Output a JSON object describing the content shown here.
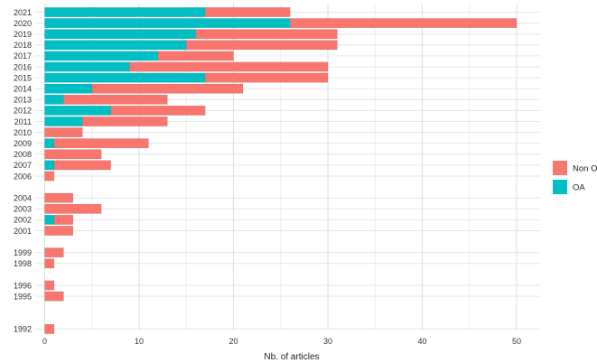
{
  "chart_data": {
    "type": "bar",
    "orientation": "horizontal",
    "stacked": true,
    "title": "",
    "xlabel": "Nb. of articles",
    "ylabel": "",
    "xlim": [
      0,
      52
    ],
    "xticks": [
      0,
      10,
      20,
      30,
      40,
      50
    ],
    "grid": true,
    "legend_position": "right",
    "categories": [
      "2021",
      "2020",
      "2019",
      "2018",
      "2017",
      "2016",
      "2015",
      "2014",
      "2013",
      "2012",
      "2011",
      "2010",
      "2009",
      "2008",
      "2007",
      "2006",
      "2004",
      "2003",
      "2002",
      "2001",
      "1999",
      "1998",
      "1996",
      "1995",
      "1992"
    ],
    "category_positions": [
      2021,
      2020,
      2019,
      2018,
      2017,
      2016,
      2015,
      2014,
      2013,
      2012,
      2011,
      2010,
      2009,
      2008,
      2007,
      2006,
      2004,
      2003,
      2002,
      2001,
      1999,
      1998,
      1996,
      1995,
      1992
    ],
    "series": [
      {
        "name": "OA",
        "color": "#00BFC4",
        "values": [
          17,
          26,
          16,
          15,
          12,
          9,
          17,
          5,
          2,
          7,
          4,
          0,
          1,
          0,
          1,
          0,
          0,
          0,
          1,
          0,
          0,
          0,
          0,
          0,
          0
        ]
      },
      {
        "name": "Non OA",
        "color": "#F8766D",
        "values": [
          9,
          24,
          15,
          16,
          8,
          21,
          13,
          16,
          11,
          10,
          9,
          4,
          10,
          6,
          6,
          1,
          3,
          6,
          2,
          3,
          2,
          1,
          1,
          2,
          1
        ]
      }
    ],
    "legend": [
      {
        "label": "Non OA",
        "color": "#F8766D"
      },
      {
        "label": "OA",
        "color": "#00BFC4"
      }
    ]
  }
}
